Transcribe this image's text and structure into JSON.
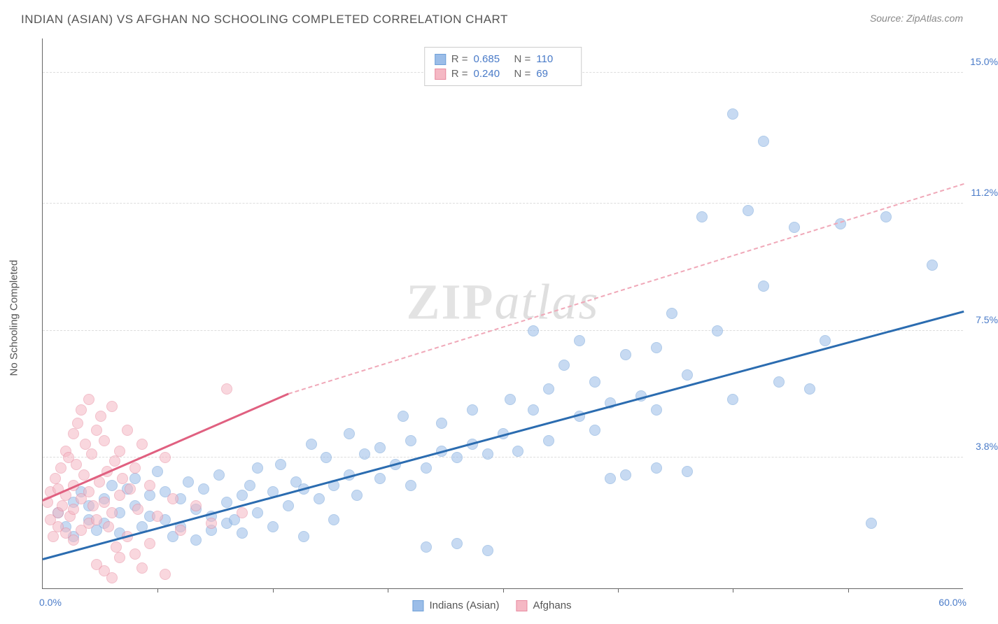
{
  "title": "INDIAN (ASIAN) VS AFGHAN NO SCHOOLING COMPLETED CORRELATION CHART",
  "source": "Source: ZipAtlas.com",
  "ylabel": "No Schooling Completed",
  "watermark_a": "ZIP",
  "watermark_b": "atlas",
  "chart": {
    "type": "scatter",
    "background_color": "#ffffff",
    "grid_color": "#dddddd",
    "axis_color": "#666666",
    "tick_color": "#4a7bc8",
    "tick_fontsize": 14,
    "label_fontsize": 15,
    "title_fontsize": 17,
    "xlim": [
      0,
      60
    ],
    "ylim": [
      0,
      16
    ],
    "yticks": [
      {
        "v": 3.8,
        "label": "3.8%"
      },
      {
        "v": 7.5,
        "label": "7.5%"
      },
      {
        "v": 11.2,
        "label": "11.2%"
      },
      {
        "v": 15.0,
        "label": "15.0%"
      }
    ],
    "xticks": [
      {
        "v": 0,
        "label": "0.0%",
        "side": "left"
      },
      {
        "v": 60,
        "label": "60.0%",
        "side": "right"
      }
    ],
    "vticks": [
      7.5,
      15,
      22.5,
      30,
      37.5,
      45,
      52.5
    ],
    "marker_radius": 8,
    "marker_opacity": 0.55,
    "series": [
      {
        "name": "Indians (Asian)",
        "color": "#9bbde8",
        "border": "#6fa0d8",
        "R": "0.685",
        "N": "110",
        "trend": {
          "x1": 0,
          "y1": 0.9,
          "x2": 60,
          "y2": 8.1,
          "color": "#2b6cb0",
          "width": 3
        },
        "points": [
          [
            1,
            2.2
          ],
          [
            1.5,
            1.8
          ],
          [
            2,
            2.5
          ],
          [
            2,
            1.5
          ],
          [
            2.5,
            2.8
          ],
          [
            3,
            2.0
          ],
          [
            3,
            2.4
          ],
          [
            3.5,
            1.7
          ],
          [
            4,
            2.6
          ],
          [
            4,
            1.9
          ],
          [
            4.5,
            3.0
          ],
          [
            5,
            2.2
          ],
          [
            5,
            1.6
          ],
          [
            5.5,
            2.9
          ],
          [
            6,
            2.4
          ],
          [
            6,
            3.2
          ],
          [
            6.5,
            1.8
          ],
          [
            7,
            2.7
          ],
          [
            7,
            2.1
          ],
          [
            7.5,
            3.4
          ],
          [
            8,
            2.0
          ],
          [
            8,
            2.8
          ],
          [
            8.5,
            1.5
          ],
          [
            9,
            2.6
          ],
          [
            9,
            1.8
          ],
          [
            9.5,
            3.1
          ],
          [
            10,
            2.3
          ],
          [
            10,
            1.4
          ],
          [
            10.5,
            2.9
          ],
          [
            11,
            2.1
          ],
          [
            11,
            1.7
          ],
          [
            11.5,
            3.3
          ],
          [
            12,
            2.5
          ],
          [
            12,
            1.9
          ],
          [
            12.5,
            2.0
          ],
          [
            13,
            2.7
          ],
          [
            13,
            1.6
          ],
          [
            13.5,
            3.0
          ],
          [
            14,
            2.2
          ],
          [
            14,
            3.5
          ],
          [
            15,
            2.8
          ],
          [
            15,
            1.8
          ],
          [
            15.5,
            3.6
          ],
          [
            16,
            2.4
          ],
          [
            16.5,
            3.1
          ],
          [
            17,
            2.9
          ],
          [
            17,
            1.5
          ],
          [
            17.5,
            4.2
          ],
          [
            18,
            2.6
          ],
          [
            18.5,
            3.8
          ],
          [
            19,
            3.0
          ],
          [
            19,
            2.0
          ],
          [
            20,
            4.5
          ],
          [
            20,
            3.3
          ],
          [
            20.5,
            2.7
          ],
          [
            21,
            3.9
          ],
          [
            22,
            3.2
          ],
          [
            22,
            4.1
          ],
          [
            23,
            3.6
          ],
          [
            23.5,
            5.0
          ],
          [
            24,
            4.3
          ],
          [
            24,
            3.0
          ],
          [
            25,
            3.5
          ],
          [
            25,
            1.2
          ],
          [
            26,
            4.8
          ],
          [
            26,
            4.0
          ],
          [
            27,
            3.8
          ],
          [
            27,
            1.3
          ],
          [
            28,
            5.2
          ],
          [
            28,
            4.2
          ],
          [
            29,
            3.9
          ],
          [
            29,
            1.1
          ],
          [
            30,
            4.5
          ],
          [
            30.5,
            5.5
          ],
          [
            31,
            4.0
          ],
          [
            32,
            5.2
          ],
          [
            32,
            7.5
          ],
          [
            33,
            5.8
          ],
          [
            33,
            4.3
          ],
          [
            34,
            6.5
          ],
          [
            35,
            5.0
          ],
          [
            35,
            7.2
          ],
          [
            36,
            6.0
          ],
          [
            36,
            4.6
          ],
          [
            37,
            5.4
          ],
          [
            37,
            3.2
          ],
          [
            38,
            6.8
          ],
          [
            38,
            3.3
          ],
          [
            39,
            5.6
          ],
          [
            40,
            7.0
          ],
          [
            40,
            5.2
          ],
          [
            40,
            3.5
          ],
          [
            41,
            8.0
          ],
          [
            42,
            6.2
          ],
          [
            42,
            3.4
          ],
          [
            43,
            10.8
          ],
          [
            44,
            7.5
          ],
          [
            45,
            5.5
          ],
          [
            45,
            13.8
          ],
          [
            46,
            11.0
          ],
          [
            47,
            8.8
          ],
          [
            47,
            13.0
          ],
          [
            48,
            6.0
          ],
          [
            49,
            10.5
          ],
          [
            50,
            5.8
          ],
          [
            51,
            7.2
          ],
          [
            52,
            10.6
          ],
          [
            54,
            1.9
          ],
          [
            55,
            10.8
          ],
          [
            58,
            9.4
          ]
        ]
      },
      {
        "name": "Afghans",
        "color": "#f5b8c4",
        "border": "#e88ba0",
        "R": "0.240",
        "N": "69",
        "trend_solid": {
          "x1": 0,
          "y1": 2.6,
          "x2": 16,
          "y2": 5.7,
          "color": "#e06080",
          "width": 3
        },
        "trend_dashed": {
          "x1": 16,
          "y1": 5.7,
          "x2": 60,
          "y2": 11.8,
          "color": "#f0a8b8",
          "width": 2
        },
        "points": [
          [
            0.3,
            2.5
          ],
          [
            0.5,
            2.0
          ],
          [
            0.5,
            2.8
          ],
          [
            0.7,
            1.5
          ],
          [
            0.8,
            3.2
          ],
          [
            1.0,
            2.2
          ],
          [
            1.0,
            2.9
          ],
          [
            1.0,
            1.8
          ],
          [
            1.2,
            3.5
          ],
          [
            1.3,
            2.4
          ],
          [
            1.5,
            4.0
          ],
          [
            1.5,
            2.7
          ],
          [
            1.5,
            1.6
          ],
          [
            1.7,
            3.8
          ],
          [
            1.8,
            2.1
          ],
          [
            2.0,
            4.5
          ],
          [
            2.0,
            3.0
          ],
          [
            2.0,
            2.3
          ],
          [
            2.0,
            1.4
          ],
          [
            2.2,
            3.6
          ],
          [
            2.3,
            4.8
          ],
          [
            2.5,
            2.6
          ],
          [
            2.5,
            5.2
          ],
          [
            2.5,
            1.7
          ],
          [
            2.7,
            3.3
          ],
          [
            2.8,
            4.2
          ],
          [
            3.0,
            2.8
          ],
          [
            3.0,
            5.5
          ],
          [
            3.0,
            1.9
          ],
          [
            3.2,
            3.9
          ],
          [
            3.3,
            2.4
          ],
          [
            3.5,
            4.6
          ],
          [
            3.5,
            2.0
          ],
          [
            3.5,
            0.7
          ],
          [
            3.7,
            3.1
          ],
          [
            3.8,
            5.0
          ],
          [
            4.0,
            2.5
          ],
          [
            4.0,
            4.3
          ],
          [
            4.0,
            0.5
          ],
          [
            4.2,
            3.4
          ],
          [
            4.3,
            1.8
          ],
          [
            4.5,
            5.3
          ],
          [
            4.5,
            2.2
          ],
          [
            4.5,
            0.3
          ],
          [
            4.7,
            3.7
          ],
          [
            4.8,
            1.2
          ],
          [
            5.0,
            4.0
          ],
          [
            5.0,
            2.7
          ],
          [
            5.0,
            0.9
          ],
          [
            5.2,
            3.2
          ],
          [
            5.5,
            4.6
          ],
          [
            5.5,
            1.5
          ],
          [
            5.7,
            2.9
          ],
          [
            6.0,
            3.5
          ],
          [
            6.0,
            1.0
          ],
          [
            6.2,
            2.3
          ],
          [
            6.5,
            4.2
          ],
          [
            6.5,
            0.6
          ],
          [
            7.0,
            3.0
          ],
          [
            7.0,
            1.3
          ],
          [
            7.5,
            2.1
          ],
          [
            8.0,
            3.8
          ],
          [
            8.0,
            0.4
          ],
          [
            8.5,
            2.6
          ],
          [
            9.0,
            1.7
          ],
          [
            10.0,
            2.4
          ],
          [
            11.0,
            1.9
          ],
          [
            12.0,
            5.8
          ],
          [
            13.0,
            2.2
          ]
        ]
      }
    ]
  },
  "legend_top": {
    "r_label": "R =",
    "n_label": "N ="
  },
  "legend_bottom": [
    {
      "label": "Indians (Asian)",
      "fill": "#9bbde8",
      "border": "#6fa0d8"
    },
    {
      "label": "Afghans",
      "fill": "#f5b8c4",
      "border": "#e88ba0"
    }
  ]
}
